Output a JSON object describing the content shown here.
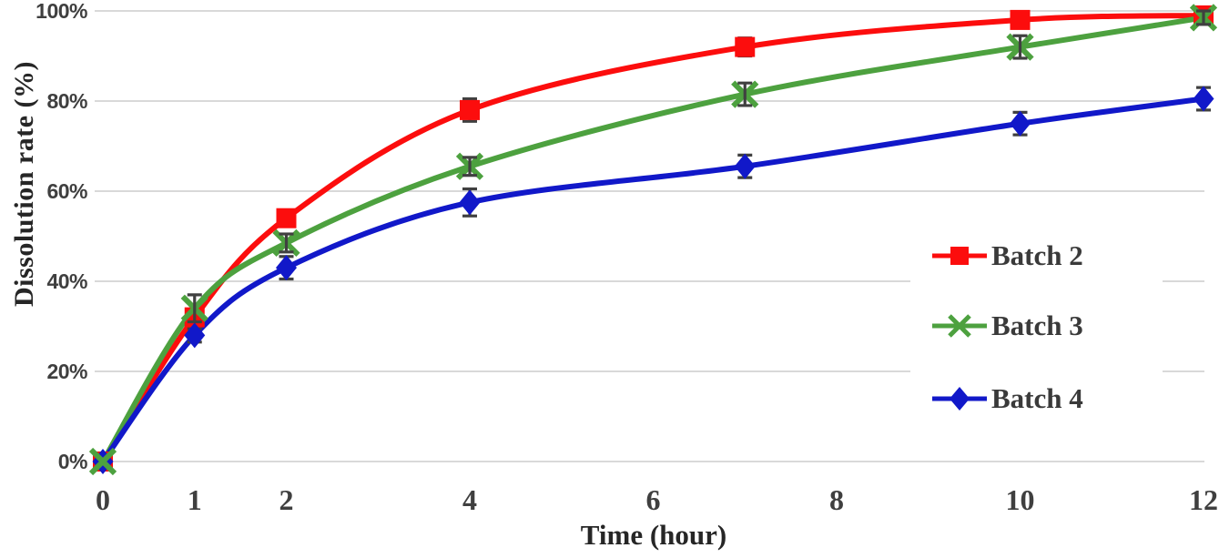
{
  "chart_data": {
    "type": "line",
    "title": "",
    "xlabel": "Time (hour)",
    "ylabel": "Dissolution rate (%)",
    "x_tick_labels": [
      "0",
      "1",
      "2",
      "4",
      "6",
      "8",
      "10",
      "12"
    ],
    "x_tick_values": [
      0,
      1,
      2,
      4,
      6,
      8,
      10,
      12
    ],
    "y_tick_labels": [
      "0%",
      "20%",
      "40%",
      "60%",
      "80%",
      "100%"
    ],
    "y_tick_values": [
      0,
      20,
      40,
      60,
      80,
      100
    ],
    "xlim": [
      0,
      12
    ],
    "ylim": [
      0,
      100
    ],
    "grid": "horizontal-only",
    "line_style": "smooth",
    "legend_position": "right-center",
    "has_error_bars": true,
    "x": [
      0,
      1,
      2,
      4,
      7,
      10,
      12
    ],
    "series": [
      {
        "name": "Batch 2",
        "marker": "square",
        "color": "#FC0D0D",
        "values": [
          0,
          32,
          54,
          78,
          92,
          98,
          99
        ],
        "error": [
          0,
          1.5,
          1.5,
          2.5,
          2,
          1.5,
          1.5
        ]
      },
      {
        "name": "Batch 3",
        "marker": "x",
        "color": "#4DA13F",
        "values": [
          0,
          34,
          48.5,
          65.5,
          81.5,
          92,
          98.5
        ],
        "error": [
          0,
          3,
          2,
          2,
          2.5,
          2.5,
          1.5
        ]
      },
      {
        "name": "Batch 4",
        "marker": "diamond",
        "color": "#1118C9",
        "values": [
          0,
          28,
          43,
          57.5,
          65.5,
          75,
          80.5
        ],
        "error": [
          0,
          1.5,
          2.5,
          3,
          2.5,
          2.5,
          2.5
        ]
      }
    ],
    "style": {
      "gridline_color": "#D9D9D9",
      "error_bar_color": "#404040",
      "tick_label_color": "#3F3F3F",
      "axis_title_color": "#262626",
      "background": "#FFFFFF"
    }
  }
}
